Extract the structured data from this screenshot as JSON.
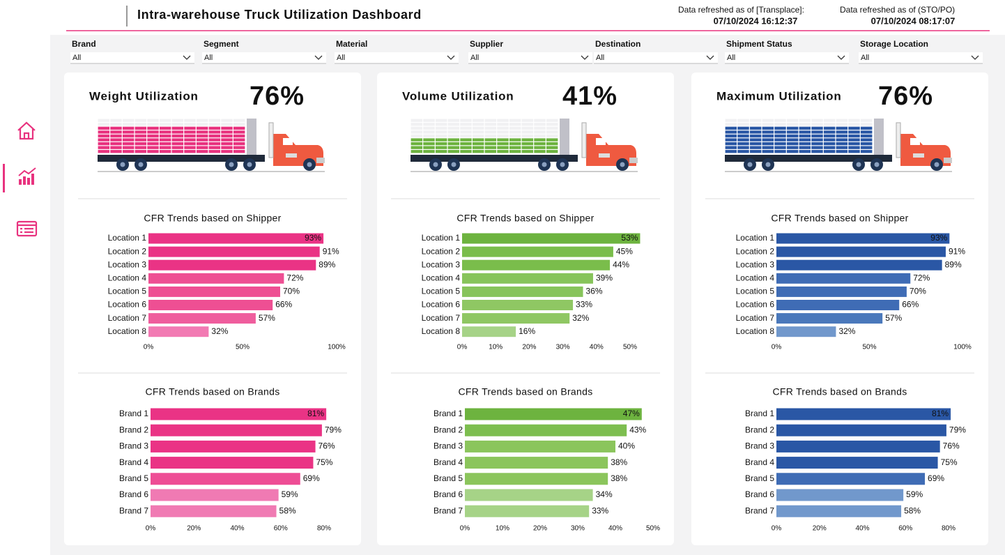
{
  "header": {
    "title": "Intra-warehouse Truck Utilization Dashboard",
    "refresh": [
      {
        "label": "Data refreshed as of [Transplace]:",
        "time": "07/10/2024 16:12:37"
      },
      {
        "label": "Data refreshed as of (STO/PO)",
        "time": "07/10/2024 08:17:07"
      }
    ]
  },
  "filters": [
    {
      "label": "Brand",
      "value": "All"
    },
    {
      "label": "Segment",
      "value": "All"
    },
    {
      "label": "Material",
      "value": "All"
    },
    {
      "label": "Supplier",
      "value": "All"
    },
    {
      "label": "Destination",
      "value": "All"
    },
    {
      "label": "Shipment Status",
      "value": "All"
    },
    {
      "label": "Storage Location",
      "value": "All"
    }
  ],
  "panels": [
    {
      "kpi_title": "Weight Utilization",
      "kpi": {
        "value": 76,
        "label": "76%"
      },
      "color": "#e8337f",
      "shipper_chart": {
        "type": "bar",
        "title": "CFR Trends based on Shipper",
        "categories": [
          "Location 1",
          "Location 2",
          "Location 3",
          "Location 4",
          "Location 5",
          "Location 6",
          "Location 7",
          "Location 8"
        ],
        "values": [
          93,
          91,
          89,
          72,
          70,
          66,
          57,
          32
        ],
        "value_labels": [
          "93%",
          "91%",
          "89%",
          "72%",
          "70%",
          "66%",
          "57%",
          "32%"
        ],
        "colors": [
          "#ea3385",
          "#ea3385",
          "#ea3385",
          "#ee4f93",
          "#ee4f93",
          "#ee4f93",
          "#ef5d9d",
          "#f27ab3"
        ],
        "xlim": [
          0,
          100
        ],
        "xticks": [
          {
            "value": 0,
            "label": "0%"
          },
          {
            "value": 50,
            "label": "50%"
          },
          {
            "value": 100,
            "label": "100%"
          }
        ]
      },
      "brand_chart": {
        "type": "bar",
        "title": "CFR Trends based on Brands",
        "categories": [
          "Brand 1",
          "Brand 2",
          "Brand 3",
          "Brand 4",
          "Brand 5",
          "Brand 6",
          "Brand 7"
        ],
        "values": [
          81,
          79,
          76,
          75,
          69,
          59,
          58
        ],
        "value_labels": [
          "81%",
          "79%",
          "76%",
          "75%",
          "69%",
          "59%",
          "58%"
        ],
        "colors": [
          "#ea3385",
          "#ea3385",
          "#ea3385",
          "#ea3385",
          "#ee4d95",
          "#f07ab3",
          "#f07ab3"
        ],
        "xlim": [
          0,
          80
        ],
        "xticks": [
          {
            "value": 0,
            "label": "0%"
          },
          {
            "value": 20,
            "label": "20%"
          },
          {
            "value": 40,
            "label": "40%"
          },
          {
            "value": 60,
            "label": "60%"
          },
          {
            "value": 80,
            "label": "80%"
          }
        ]
      }
    },
    {
      "kpi_title": "Volume Utilization",
      "kpi": {
        "value": 41,
        "label": "41%"
      },
      "color": "#6db33f",
      "shipper_chart": {
        "type": "bar",
        "title": "CFR Trends based on Shipper",
        "categories": [
          "Location 1",
          "Location 2",
          "Location 3",
          "Location 4",
          "Location 5",
          "Location 6",
          "Location 7",
          "Location 8"
        ],
        "values": [
          53,
          45,
          44,
          39,
          36,
          33,
          32,
          16
        ],
        "value_labels": [
          "53%",
          "45%",
          "44%",
          "39%",
          "36%",
          "33%",
          "32%",
          "16%"
        ],
        "colors": [
          "#6db33f",
          "#7abd4b",
          "#7abd4b",
          "#87c45b",
          "#87c45b",
          "#8fc763",
          "#8fc763",
          "#a6d387"
        ],
        "xlim": [
          0,
          50
        ],
        "xticks": [
          {
            "value": 0,
            "label": "0%"
          },
          {
            "value": 10,
            "label": "10%"
          },
          {
            "value": 20,
            "label": "20%"
          },
          {
            "value": 30,
            "label": "30%"
          },
          {
            "value": 40,
            "label": "40%"
          },
          {
            "value": 50,
            "label": "50%"
          }
        ]
      },
      "brand_chart": {
        "type": "bar",
        "title": "CFR Trends based on Brands",
        "categories": [
          "Brand 1",
          "Brand 2",
          "Brand 3",
          "Brand 4",
          "Brand 5",
          "Brand 6",
          "Brand 7"
        ],
        "values": [
          47,
          43,
          40,
          38,
          38,
          34,
          33
        ],
        "value_labels": [
          "47%",
          "43%",
          "40%",
          "38%",
          "38%",
          "34%",
          "33%"
        ],
        "colors": [
          "#6db33f",
          "#7dbe4f",
          "#8bc55c",
          "#8bc55c",
          "#8bc55c",
          "#a6d387",
          "#a6d387"
        ],
        "xlim": [
          0,
          50
        ],
        "xticks": [
          {
            "value": 0,
            "label": "0%"
          },
          {
            "value": 10,
            "label": "10%"
          },
          {
            "value": 20,
            "label": "20%"
          },
          {
            "value": 30,
            "label": "30%"
          },
          {
            "value": 40,
            "label": "40%"
          },
          {
            "value": 50,
            "label": "50%"
          }
        ]
      }
    },
    {
      "kpi_title": "Maximum Utilization",
      "kpi": {
        "value": 76,
        "label": "76%"
      },
      "color": "#2a57a5",
      "shipper_chart": {
        "type": "bar",
        "title": "CFR Trends based on Shipper",
        "categories": [
          "Location 1",
          "Location 2",
          "Location 3",
          "Location 4",
          "Location 5",
          "Location 6",
          "Location 7",
          "Location 8"
        ],
        "values": [
          93,
          91,
          89,
          72,
          70,
          66,
          57,
          32
        ],
        "value_labels": [
          "93%",
          "91%",
          "89%",
          "72%",
          "70%",
          "66%",
          "57%",
          "32%"
        ],
        "colors": [
          "#2a57a5",
          "#2a57a5",
          "#2a57a5",
          "#3f6cb5",
          "#3f6cb5",
          "#3f6cb5",
          "#4a78bb",
          "#7198cc"
        ],
        "xlim": [
          0,
          100
        ],
        "xticks": [
          {
            "value": 0,
            "label": "0%"
          },
          {
            "value": 50,
            "label": "50%"
          },
          {
            "value": 100,
            "label": "100%"
          }
        ]
      },
      "brand_chart": {
        "type": "bar",
        "title": "CFR Trends based on Brands",
        "categories": [
          "Brand 1",
          "Brand 2",
          "Brand 3",
          "Brand 4",
          "Brand 5",
          "Brand 6",
          "Brand 7"
        ],
        "values": [
          81,
          79,
          76,
          75,
          69,
          59,
          58
        ],
        "value_labels": [
          "81%",
          "79%",
          "76%",
          "75%",
          "69%",
          "59%",
          "58%"
        ],
        "colors": [
          "#2a57a5",
          "#2a57a5",
          "#2a57a5",
          "#2a57a5",
          "#3f6cb5",
          "#7198cc",
          "#7198cc"
        ],
        "xlim": [
          0,
          80
        ],
        "xticks": [
          {
            "value": 0,
            "label": "0%"
          },
          {
            "value": 20,
            "label": "20%"
          },
          {
            "value": 40,
            "label": "40%"
          },
          {
            "value": 60,
            "label": "60%"
          },
          {
            "value": 80,
            "label": "80%"
          }
        ]
      }
    }
  ]
}
